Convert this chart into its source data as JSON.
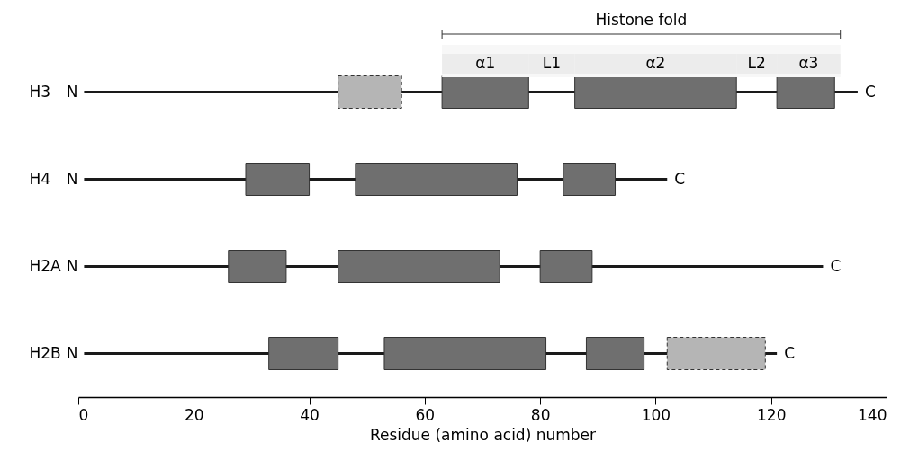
{
  "chart_data": {
    "type": "bar",
    "orientation": "horizontal",
    "xlabel": "Residue (amino acid) number",
    "categories": [
      "H3",
      "H4",
      "H2A",
      "H2B"
    ],
    "xlim": [
      0,
      140
    ],
    "xticks": [
      0,
      20,
      40,
      60,
      80,
      100,
      120,
      140
    ],
    "grid": false,
    "series": [
      {
        "type": "bar",
        "color": "#1a1a1a",
        "base": [
          1,
          1,
          1,
          1
        ],
        "values": [
          134,
          101,
          128,
          120
        ]
      },
      {
        "type": "bar",
        "color": "#b5b5b5",
        "line_style": "dashed",
        "base": [
          45,
          null,
          null,
          102
        ],
        "values": [
          11,
          null,
          null,
          17
        ]
      },
      {
        "type": "bar",
        "color": "#6f6f6f",
        "base": [
          63,
          29,
          26,
          33
        ],
        "values": [
          15,
          11,
          10,
          12
        ]
      },
      {
        "type": "bar",
        "color": "#6f6f6f",
        "base": [
          86,
          48,
          45,
          53
        ],
        "values": [
          28,
          28,
          28,
          28
        ]
      },
      {
        "type": "bar",
        "color": "#6f6f6f",
        "base": [
          121,
          84,
          80,
          88
        ],
        "values": [
          10,
          9,
          9,
          10
        ]
      }
    ],
    "bands": [
      {
        "axis": "x",
        "from": 63,
        "to": 132,
        "label": "Histone fold"
      },
      {
        "axis": "x",
        "from": 63,
        "to": 78,
        "label": "α1"
      },
      {
        "axis": "x",
        "from": 78,
        "to": 86,
        "label": "L1"
      },
      {
        "axis": "x",
        "from": 86,
        "to": 114,
        "label": "α2"
      },
      {
        "axis": "x",
        "from": 114,
        "to": 121,
        "label": "L2"
      },
      {
        "axis": "x",
        "from": 121,
        "to": 132,
        "label": "α3"
      }
    ],
    "annotations": [
      {
        "text": "N",
        "x": 1,
        "y": "H3"
      },
      {
        "text": "N",
        "x": 1,
        "y": "H4"
      },
      {
        "text": "N",
        "x": 1,
        "y": "H2A"
      },
      {
        "text": "N",
        "x": 1,
        "y": "H2B"
      },
      {
        "text": "C",
        "x": 135,
        "y": "H3"
      },
      {
        "text": "C",
        "x": 102,
        "y": "H4"
      },
      {
        "text": "C",
        "x": 129,
        "y": "H2A"
      },
      {
        "text": "C",
        "x": 121,
        "y": "H2B"
      }
    ]
  }
}
